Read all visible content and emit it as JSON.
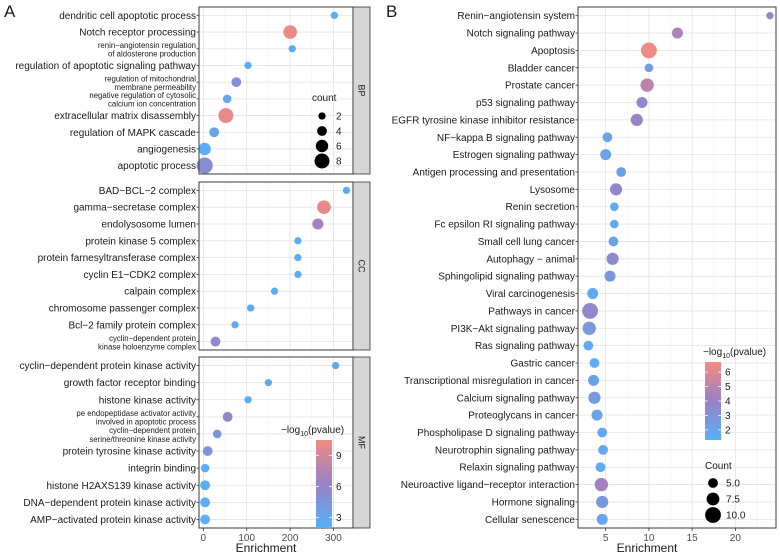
{
  "chart_data": [
    {
      "panel": "A",
      "type": "scatter",
      "xlabel": "Enrichment",
      "xlim": [
        -10,
        345
      ],
      "xticks": [
        0,
        100,
        200,
        300
      ],
      "colors": {
        "low": "#56B1F7",
        "mid": "#9A80C6",
        "high": "#F28B82"
      },
      "facets": [
        {
          "name": "BP",
          "items": [
            {
              "label": "dendritic cell apoptotic process",
              "x": 302,
              "count": 2,
              "neglog10p": 2.4
            },
            {
              "label": "Notch receptor processing",
              "x": 200,
              "count": 7,
              "neglog10p": 10.2
            },
            {
              "label": "renin−angiotensin regulation\nof aldosterone production",
              "x": 205,
              "count": 2,
              "neglog10p": 2.6
            },
            {
              "label": "regulation of apoptotic signaling pathway",
              "x": 103,
              "count": 2,
              "neglog10p": 2.5
            },
            {
              "label": "regulation of mitochondrial\nmembrane permeability",
              "x": 76,
              "count": 4,
              "neglog10p": 5.0
            },
            {
              "label": "negative regulation of cytosolic\ncalcium ion concentration",
              "x": 55,
              "count": 3,
              "neglog10p": 2.9
            },
            {
              "label": "extracellular matrix disassembly",
              "x": 52,
              "count": 8,
              "neglog10p": 10.0
            },
            {
              "label": "regulation of MAPK cascade",
              "x": 25,
              "count": 4,
              "neglog10p": 3.2
            },
            {
              "label": "angiogenesis",
              "x": 3,
              "count": 6,
              "neglog10p": 2.3
            },
            {
              "label": "apoptotic process",
              "x": 3,
              "count": 9,
              "neglog10p": 5.2
            }
          ]
        },
        {
          "name": "CC",
          "items": [
            {
              "label": "BAD−BCL−2 complex",
              "x": 330,
              "count": 2,
              "neglog10p": 2.4
            },
            {
              "label": "gamma−secretase complex",
              "x": 278,
              "count": 7,
              "neglog10p": 10.0
            },
            {
              "label": "endolysosome lumen",
              "x": 264,
              "count": 5,
              "neglog10p": 6.8
            },
            {
              "label": "protein kinase 5 complex",
              "x": 218,
              "count": 2,
              "neglog10p": 2.5
            },
            {
              "label": "protein farnesyltransferase complex",
              "x": 218,
              "count": 2,
              "neglog10p": 2.5
            },
            {
              "label": "cyclin E1−CDK2 complex",
              "x": 218,
              "count": 2,
              "neglog10p": 2.5
            },
            {
              "label": "calpain complex",
              "x": 164,
              "count": 2,
              "neglog10p": 2.4
            },
            {
              "label": "chromosome passenger complex",
              "x": 109,
              "count": 2,
              "neglog10p": 2.4
            },
            {
              "label": "Bcl−2 family protein complex",
              "x": 73,
              "count": 2,
              "neglog10p": 2.5
            },
            {
              "label": "cyclin−dependent protein\nkinase holoenzyme complex",
              "x": 28,
              "count": 4,
              "neglog10p": 5.3
            }
          ]
        },
        {
          "name": "MF",
          "items": [
            {
              "label": "cyclin−dependent protein kinase activity",
              "x": 305,
              "count": 2,
              "neglog10p": 2.4
            },
            {
              "label": "growth factor receptor binding",
              "x": 150,
              "count": 2,
              "neglog10p": 2.4
            },
            {
              "label": "histone kinase activity",
              "x": 103,
              "count": 2,
              "neglog10p": 2.4
            },
            {
              "label": "pe endopeptidase activator activity\ninvolved in apoptotic process",
              "x": 56,
              "count": 4,
              "neglog10p": 5.8
            },
            {
              "label": "cyclin−dependent protein\nserine/threonine kinase activity",
              "x": 32,
              "count": 3,
              "neglog10p": 4.5
            },
            {
              "label": "protein tyrosine kinase activity",
              "x": 10,
              "count": 4,
              "neglog10p": 4.6
            },
            {
              "label": "integrin binding",
              "x": 4,
              "count": 3,
              "neglog10p": 2.2
            },
            {
              "label": "histone H2AXS139 kinase activity",
              "x": 4,
              "count": 4,
              "neglog10p": 2.2
            },
            {
              "label": "DNA−dependent protein kinase activity",
              "x": 4,
              "count": 4,
              "neglog10p": 2.3
            },
            {
              "label": "AMP−activated protein kinase activity",
              "x": 4,
              "count": 4,
              "neglog10p": 2.2
            }
          ]
        }
      ],
      "size_legend": {
        "title": "count",
        "values": [
          2,
          4,
          6,
          8
        ]
      },
      "color_legend": {
        "title": "−log10(pvalue)",
        "title_prefix": "−log",
        "title_sub": "10",
        "title_suffix": "(pvalue)",
        "range": [
          2,
          10.5
        ],
        "ticks": [
          3,
          6,
          9
        ]
      }
    },
    {
      "panel": "B",
      "type": "scatter",
      "xlabel": "Enrichment",
      "xlim": [
        1.8,
        24.7
      ],
      "xticks": [
        5,
        10,
        15,
        20
      ],
      "colors": {
        "low": "#56B1F7",
        "mid": "#9A80C6",
        "high": "#F28B82"
      },
      "items": [
        {
          "label": "Renin−angiotensin system",
          "x": 24.0,
          "count": 3,
          "neglog10p": 3.8
        },
        {
          "label": "Notch signaling pathway",
          "x": 13.3,
          "count": 6,
          "neglog10p": 4.6
        },
        {
          "label": "Apoptosis",
          "x": 10.0,
          "count": 10,
          "neglog10p": 6.6
        },
        {
          "label": "Bladder cancer",
          "x": 10.0,
          "count": 4,
          "neglog10p": 2.2
        },
        {
          "label": "Prostate cancer",
          "x": 9.8,
          "count": 8,
          "neglog10p": 5.0
        },
        {
          "label": "p53 signaling pathway",
          "x": 9.2,
          "count": 6,
          "neglog10p": 3.6
        },
        {
          "label": "EGFR tyrosine kinase inhibitor resistance",
          "x": 8.6,
          "count": 7,
          "neglog10p": 3.8
        },
        {
          "label": "NF−kappa B signaling pathway",
          "x": 5.2,
          "count": 5,
          "neglog10p": 2.0
        },
        {
          "label": "Estrogen signaling pathway",
          "x": 5.0,
          "count": 6,
          "neglog10p": 2.1
        },
        {
          "label": "Antigen processing and presentation",
          "x": 6.8,
          "count": 5,
          "neglog10p": 2.2
        },
        {
          "label": "Lysosome",
          "x": 6.2,
          "count": 7,
          "neglog10p": 3.6
        },
        {
          "label": "Renin secretion",
          "x": 6.0,
          "count": 4,
          "neglog10p": 1.7
        },
        {
          "label": "Fc epsilon RI signaling pathway",
          "x": 6.0,
          "count": 4,
          "neglog10p": 1.7
        },
        {
          "label": "Small cell lung cancer",
          "x": 5.9,
          "count": 5,
          "neglog10p": 2.0
        },
        {
          "label": "Autophagy − animal",
          "x": 5.8,
          "count": 7,
          "neglog10p": 3.5
        },
        {
          "label": "Sphingolipid signaling pathway",
          "x": 5.5,
          "count": 6,
          "neglog10p": 2.7
        },
        {
          "label": "Viral carcinogenesis",
          "x": 3.5,
          "count": 6,
          "neglog10p": 1.7
        },
        {
          "label": "Pathways in cancer",
          "x": 3.2,
          "count": 10,
          "neglog10p": 3.6
        },
        {
          "label": "PI3K−Akt signaling pathway",
          "x": 3.1,
          "count": 8,
          "neglog10p": 2.7
        },
        {
          "label": "Ras signaling pathway",
          "x": 3.0,
          "count": 5,
          "neglog10p": 1.7
        },
        {
          "label": "Gastric cancer",
          "x": 3.7,
          "count": 5,
          "neglog10p": 1.7
        },
        {
          "label": "Transcriptional misregulation in cancer",
          "x": 3.6,
          "count": 6,
          "neglog10p": 2.1
        },
        {
          "label": "Calcium signaling pathway",
          "x": 3.7,
          "count": 7,
          "neglog10p": 2.6
        },
        {
          "label": "Proteoglycans in cancer",
          "x": 4.0,
          "count": 6,
          "neglog10p": 2.1
        },
        {
          "label": "Phospholipase D signaling pathway",
          "x": 4.6,
          "count": 5,
          "neglog10p": 1.8
        },
        {
          "label": "Neurotrophin signaling pathway",
          "x": 4.7,
          "count": 5,
          "neglog10p": 1.8
        },
        {
          "label": "Relaxin signaling pathway",
          "x": 4.4,
          "count": 5,
          "neglog10p": 1.7
        },
        {
          "label": "Neuroactive ligand−receptor interaction",
          "x": 4.5,
          "count": 8,
          "neglog10p": 4.3
        },
        {
          "label": "Hormone signaling",
          "x": 4.6,
          "count": 7,
          "neglog10p": 2.6
        },
        {
          "label": "Cellular senescence",
          "x": 4.6,
          "count": 6,
          "neglog10p": 1.9
        }
      ],
      "color_legend": {
        "title": "−log10(pvalue)",
        "title_prefix": "−log",
        "title_sub": "10",
        "title_suffix": "(pvalue)",
        "range": [
          1.3,
          6.7
        ],
        "ticks": [
          2,
          3,
          4,
          5,
          6
        ]
      },
      "size_legend": {
        "title": "Count",
        "values": [
          5.0,
          7.5,
          10.0
        ],
        "labels": [
          "5.0",
          "7.5",
          "10.0"
        ]
      }
    }
  ]
}
